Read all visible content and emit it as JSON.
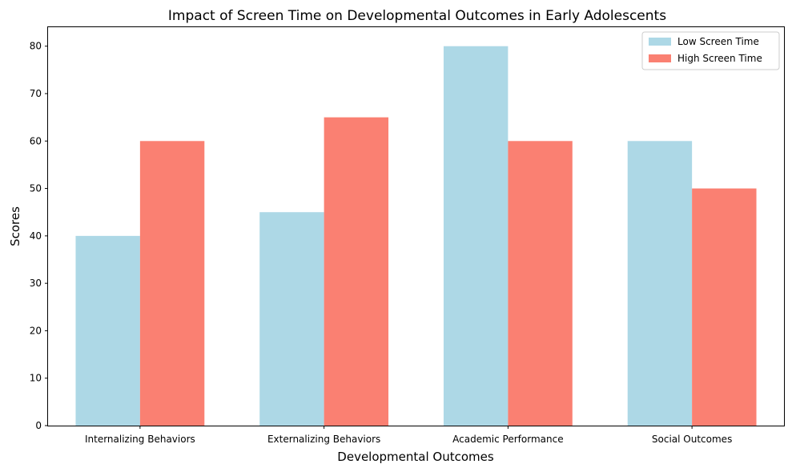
{
  "chart_data": {
    "type": "bar",
    "title": "Impact of Screen Time on Developmental Outcomes in Early Adolescents",
    "xlabel": "Developmental Outcomes",
    "ylabel": "Scores",
    "categories": [
      "Internalizing Behaviors",
      "Externalizing Behaviors",
      "Academic Performance",
      "Social Outcomes"
    ],
    "series": [
      {
        "name": "Low Screen Time",
        "values": [
          40,
          45,
          80,
          60
        ],
        "color": "#add8e6"
      },
      {
        "name": "High Screen Time",
        "values": [
          60,
          65,
          60,
          50
        ],
        "color": "#fa8072"
      }
    ],
    "ylim": [
      0,
      84
    ],
    "yticks": [
      0,
      10,
      20,
      30,
      40,
      50,
      60,
      70,
      80
    ],
    "grid": false,
    "legend": "top-right"
  }
}
